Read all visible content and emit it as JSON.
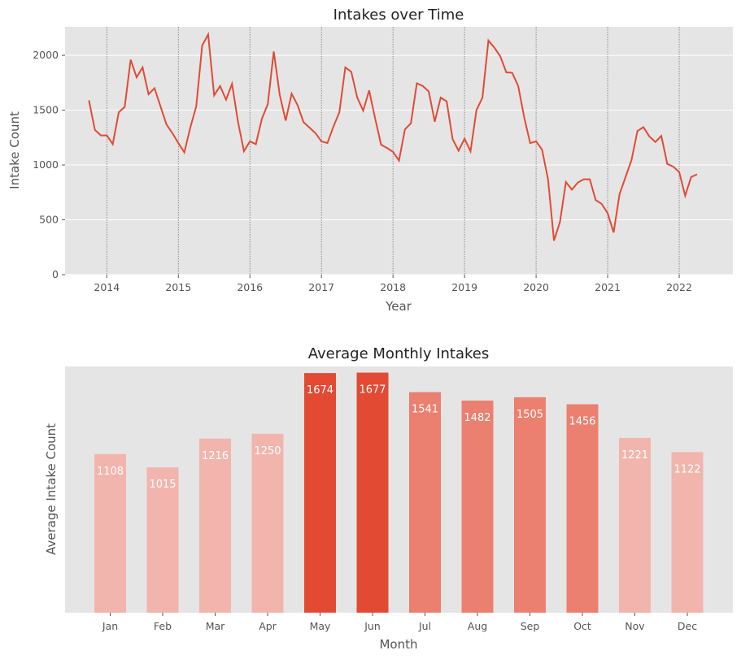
{
  "chart_data": [
    {
      "type": "line",
      "title": "Intakes over Time",
      "xlabel": "Year",
      "ylabel": "Intake Count",
      "ylim": [
        0,
        2260
      ],
      "xlim": [
        "2013-06",
        "2022-10"
      ],
      "x_tick_labels": [
        "2014",
        "2015",
        "2016",
        "2017",
        "2018",
        "2019",
        "2020",
        "2021",
        "2022"
      ],
      "y_tick_labels": [
        "0",
        "500",
        "1000",
        "1500",
        "2000"
      ],
      "grid": true,
      "vertical_year_lines": "dotted",
      "color": "#e24a33",
      "x": [
        "2013-10",
        "2013-11",
        "2013-12",
        "2014-01",
        "2014-02",
        "2014-03",
        "2014-04",
        "2014-05",
        "2014-06",
        "2014-07",
        "2014-08",
        "2014-09",
        "2014-10",
        "2014-11",
        "2014-12",
        "2015-01",
        "2015-02",
        "2015-03",
        "2015-04",
        "2015-05",
        "2015-06",
        "2015-07",
        "2015-08",
        "2015-09",
        "2015-10",
        "2015-11",
        "2015-12",
        "2016-01",
        "2016-02",
        "2016-03",
        "2016-04",
        "2016-05",
        "2016-06",
        "2016-07",
        "2016-08",
        "2016-09",
        "2016-10",
        "2016-11",
        "2016-12",
        "2017-01",
        "2017-02",
        "2017-03",
        "2017-04",
        "2017-05",
        "2017-06",
        "2017-07",
        "2017-08",
        "2017-09",
        "2017-10",
        "2017-11",
        "2017-12",
        "2018-01",
        "2018-02",
        "2018-03",
        "2018-04",
        "2018-05",
        "2018-06",
        "2018-07",
        "2018-08",
        "2018-09",
        "2018-10",
        "2018-11",
        "2018-12",
        "2019-01",
        "2019-02",
        "2019-03",
        "2019-04",
        "2019-05",
        "2019-06",
        "2019-07",
        "2019-08",
        "2019-09",
        "2019-10",
        "2019-11",
        "2019-12",
        "2020-01",
        "2020-02",
        "2020-03",
        "2020-04",
        "2020-05",
        "2020-06",
        "2020-07",
        "2020-08",
        "2020-09",
        "2020-10",
        "2020-11",
        "2020-12",
        "2021-01",
        "2021-02",
        "2021-03",
        "2021-04",
        "2021-05",
        "2021-06",
        "2021-07",
        "2021-08",
        "2021-09",
        "2021-10",
        "2021-11",
        "2021-12",
        "2022-01",
        "2022-02",
        "2022-03",
        "2022-04"
      ],
      "values": [
        1590,
        1320,
        1270,
        1270,
        1190,
        1480,
        1530,
        1960,
        1800,
        1890,
        1645,
        1700,
        1535,
        1370,
        1290,
        1200,
        1115,
        1340,
        1535,
        2090,
        2190,
        1635,
        1720,
        1595,
        1740,
        1395,
        1125,
        1215,
        1190,
        1420,
        1555,
        2035,
        1640,
        1405,
        1650,
        1545,
        1390,
        1340,
        1290,
        1215,
        1200,
        1350,
        1480,
        1890,
        1850,
        1615,
        1495,
        1680,
        1425,
        1185,
        1155,
        1120,
        1040,
        1325,
        1380,
        1745,
        1720,
        1670,
        1395,
        1615,
        1580,
        1235,
        1130,
        1240,
        1125,
        1500,
        1615,
        2135,
        2070,
        1990,
        1845,
        1840,
        1720,
        1435,
        1200,
        1215,
        1140,
        870,
        310,
        480,
        845,
        775,
        840,
        870,
        870,
        680,
        645,
        560,
        385,
        735,
        890,
        1045,
        1310,
        1345,
        1260,
        1210,
        1265,
        1010,
        985,
        935,
        720,
        890,
        915
      ]
    },
    {
      "type": "bar",
      "title": "Average Monthly Intakes",
      "xlabel": "Month",
      "ylabel": "Average Intake Count",
      "ylim": [
        0,
        1720
      ],
      "categories": [
        "Jan",
        "Feb",
        "Mar",
        "Apr",
        "May",
        "Jun",
        "Jul",
        "Aug",
        "Sep",
        "Oct",
        "Nov",
        "Dec"
      ],
      "values": [
        1108,
        1015,
        1216,
        1250,
        1674,
        1677,
        1541,
        1482,
        1505,
        1456,
        1221,
        1122
      ],
      "data_labels": [
        "1108",
        "1015",
        "1216",
        "1250",
        "1674",
        "1677",
        "1541",
        "1482",
        "1505",
        "1456",
        "1221",
        "1122"
      ],
      "colors": [
        "#f2b5ad",
        "#f2b5ad",
        "#f2b5ad",
        "#f2b5ad",
        "#e24a33",
        "#e24a33",
        "#eb8070",
        "#eb8070",
        "#eb8070",
        "#eb8070",
        "#f2b5ad",
        "#f2b5ad"
      ],
      "y_ticks_shown": false
    }
  ]
}
